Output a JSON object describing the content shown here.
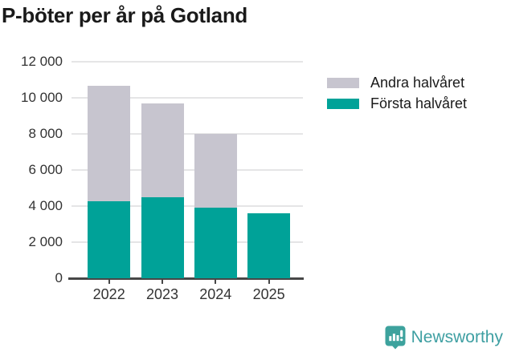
{
  "title": "P-böter per år på Gotland",
  "chart_data": {
    "type": "bar",
    "stacked": true,
    "title": "P-böter per år på Gotland",
    "categories": [
      "2022",
      "2023",
      "2024",
      "2025"
    ],
    "series": [
      {
        "name": "Första halvåret",
        "color": "#00A298",
        "values": [
          4250,
          4500,
          3900,
          3600
        ]
      },
      {
        "name": "Andra halvåret",
        "color": "#C7C5CF",
        "values": [
          6400,
          5200,
          4100,
          0
        ]
      }
    ],
    "legend_order": [
      "Andra halvåret",
      "Första halvåret"
    ],
    "legend_position": "right",
    "xlabel": "",
    "ylabel": "",
    "ylim": [
      0,
      12000
    ],
    "ytick_step": 2000,
    "ytick_labels": [
      "0",
      "2 000",
      "4 000",
      "6 000",
      "8 000",
      "10 000",
      "12 000"
    ],
    "grid": true
  },
  "footer": {
    "brand": "Newsworthy",
    "icon": "bar-chart-bubble-icon",
    "brand_color": "#3E9FA2",
    "icon_color": "#3DA29D"
  },
  "colors": {
    "first_half": "#00A298",
    "second_half": "#C7C5CF",
    "title_text": "#1A1A1A",
    "axis_text": "#333333",
    "gridline": "#E5E5E6",
    "axis_line": "#474747",
    "background": "#FFFFFF"
  }
}
